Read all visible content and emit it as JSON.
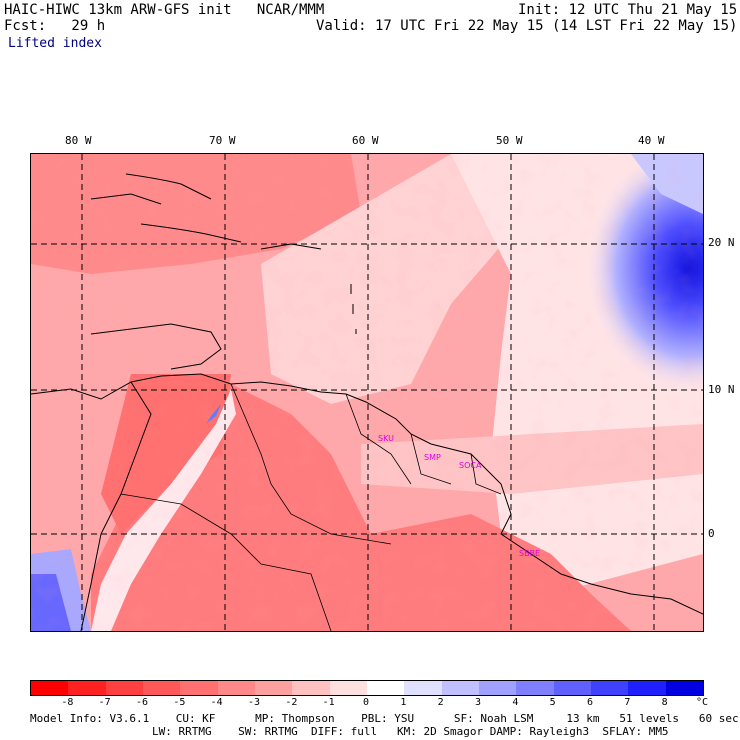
{
  "header": {
    "line1_left": "HAIC-HIWC 13km ARW-GFS init   NCAR/MMM",
    "line1_right": "Init: 12 UTC Thu 21 May 15",
    "line2_left": "Fcst:   29 h",
    "line2_right": "Valid: 17 UTC Fri 22 May 15 (14 LST Fri 22 May 15)",
    "field": "Lifted index"
  },
  "axes": {
    "lon_labels": [
      "80 W",
      "70 W",
      "60 W",
      "50 W",
      "40 W"
    ],
    "lat_labels": [
      "20 N",
      "10 N",
      "0"
    ]
  },
  "stations": [
    "SKU",
    "SMP",
    "SOCA",
    "SBBE"
  ],
  "colorbar": {
    "labels": [
      "-8",
      "-7",
      "-6",
      "-5",
      "-4",
      "-3",
      "-2",
      "-1",
      "0",
      "1",
      "2",
      "3",
      "4",
      "5",
      "6",
      "7",
      "8"
    ],
    "unit": "°C",
    "colors": [
      "#ff0000",
      "#ff2020",
      "#ff4040",
      "#ff5858",
      "#ff7070",
      "#ff8888",
      "#ffa0a0",
      "#ffc0c0",
      "#ffe0e0",
      "#ffffff",
      "#e0e0ff",
      "#c0c0ff",
      "#a0a0ff",
      "#8080ff",
      "#6060ff",
      "#4040ff",
      "#2020ff",
      "#0000e0"
    ]
  },
  "footer": {
    "line1": "Model Info: V3.6.1    CU: KF      MP: Thompson    PBL: YSU      SF: Noah LSM     13 km   51 levels   60 sec",
    "line2": "LW: RRTMG    SW: RRTMG  DIFF: full   KM: 2D Smagor DAMP: Rayleigh3  SFLAY: MM5"
  }
}
